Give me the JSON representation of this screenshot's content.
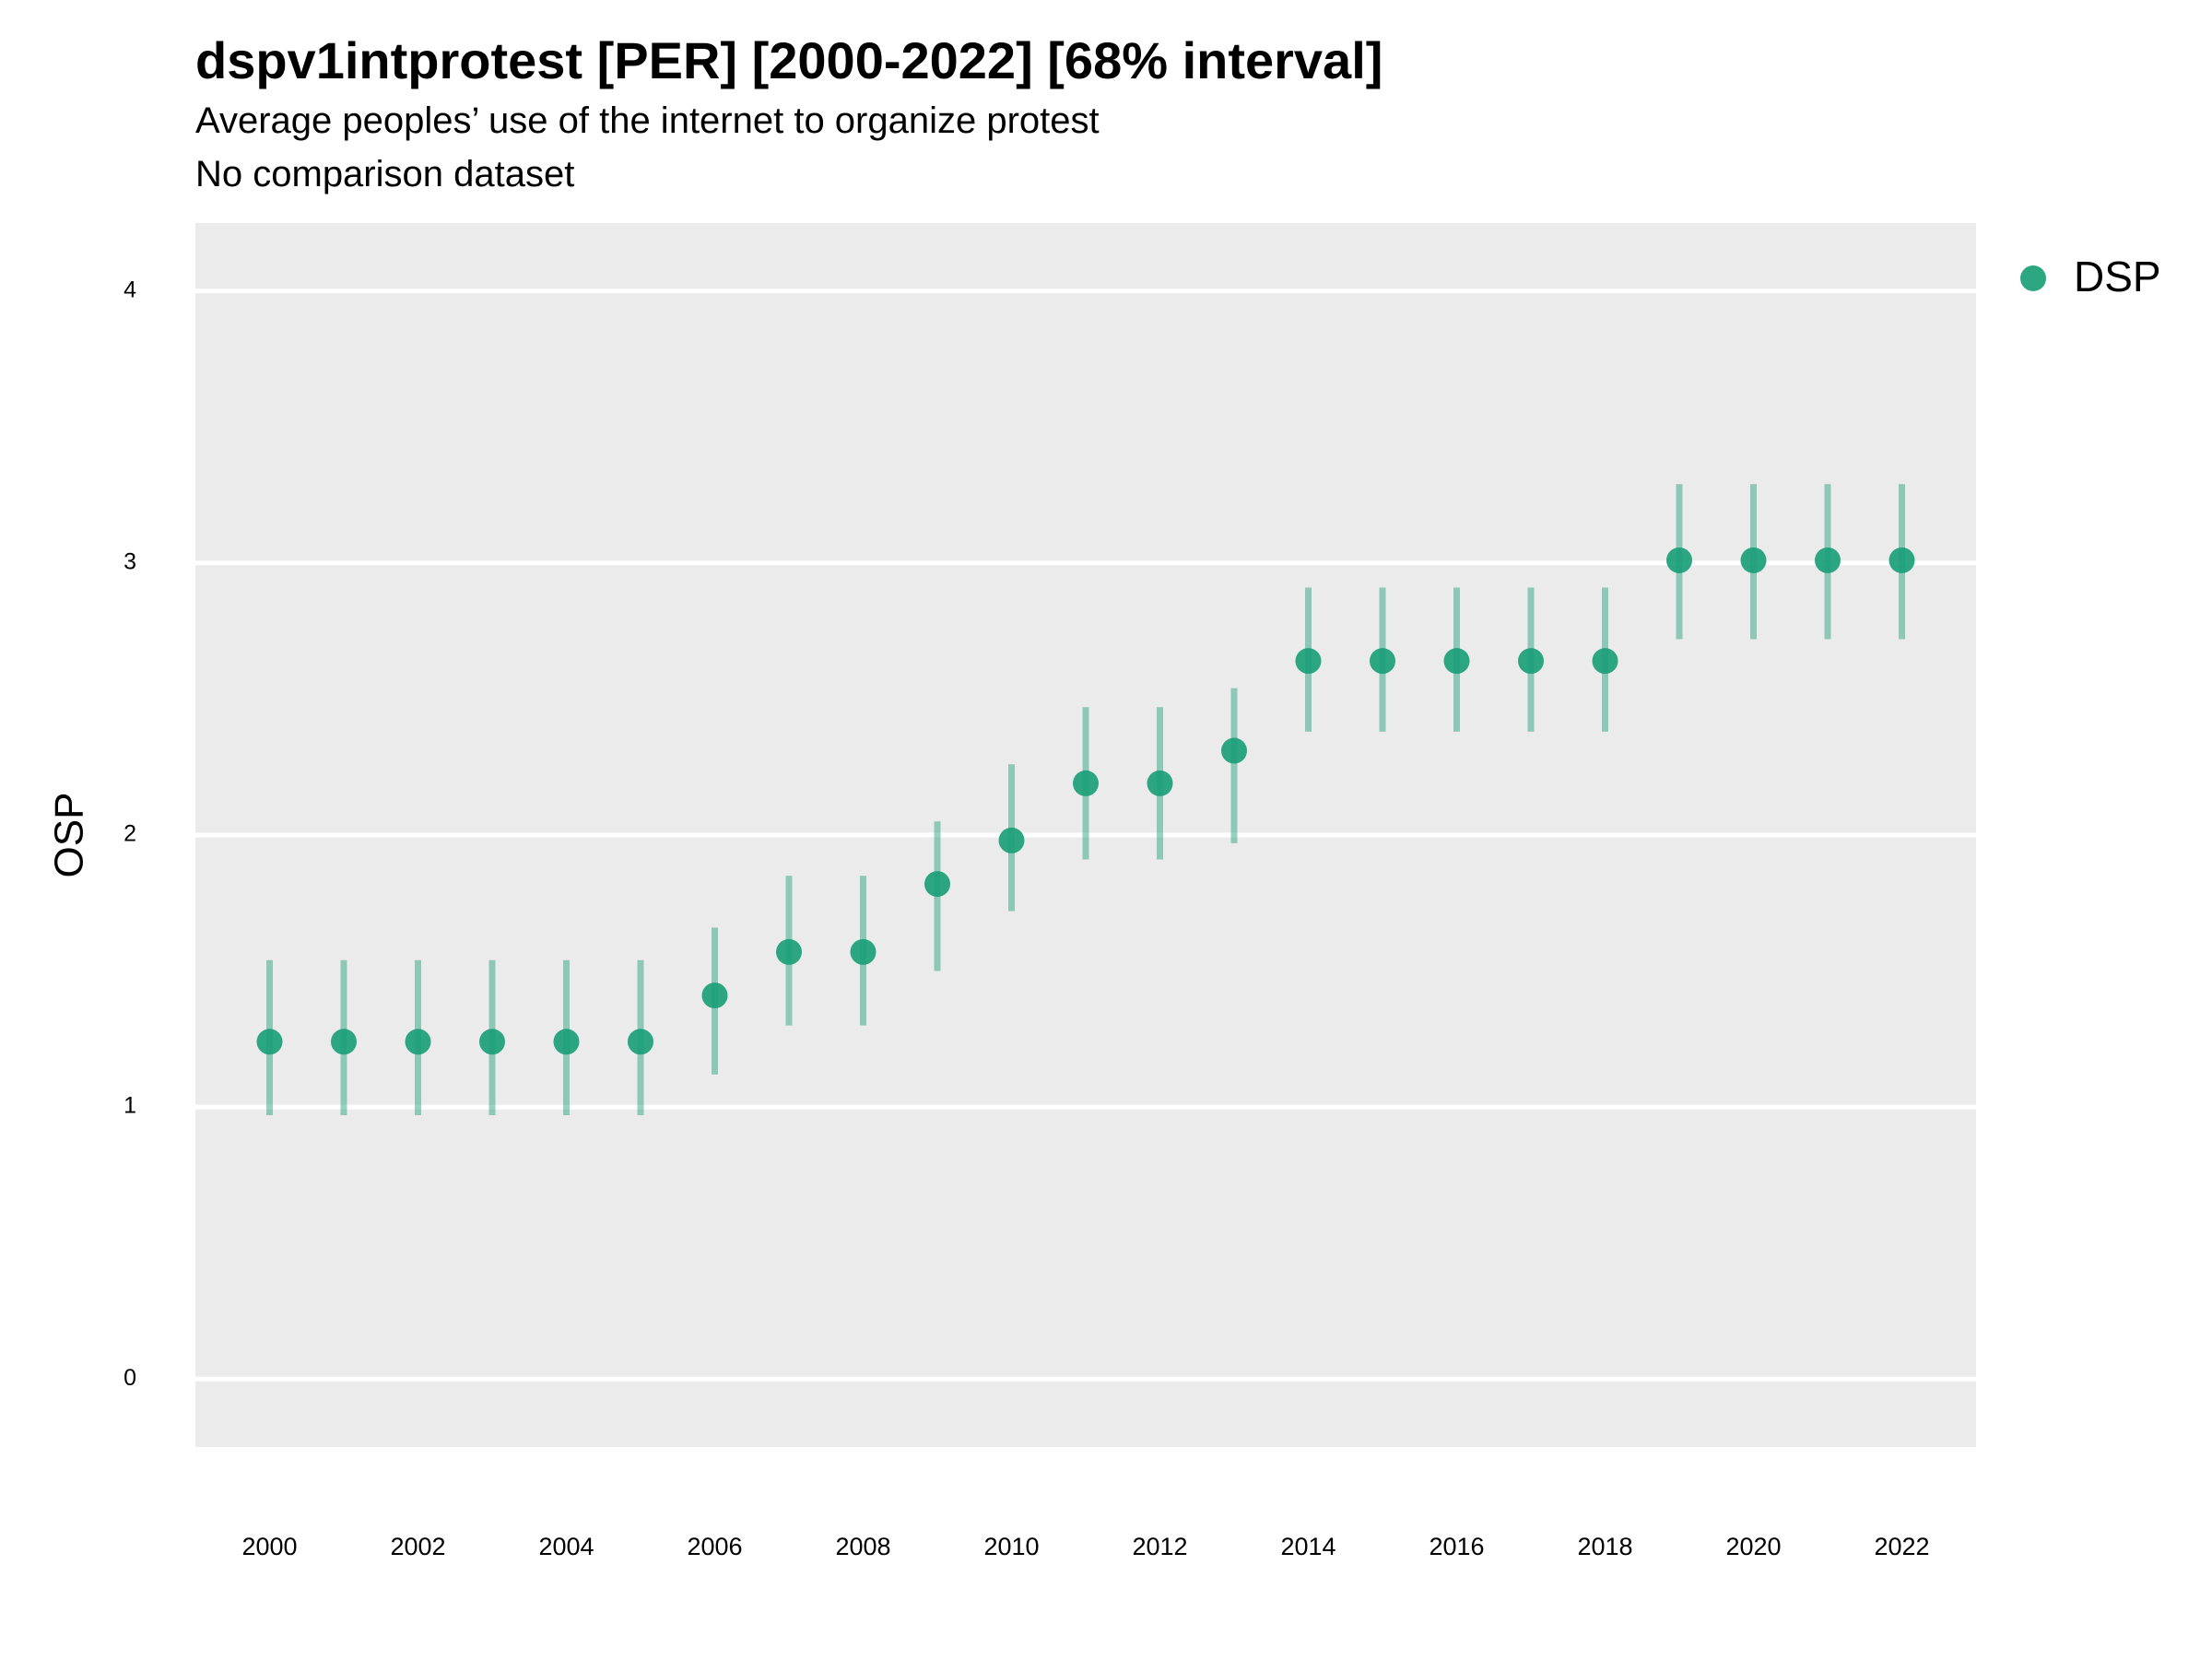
{
  "chart_data": {
    "type": "scatter",
    "title": "dspv1intprotest [PER] [2000-2022] [68% interval]",
    "subtitle": "Average peoples’ use of the internet to organize protest",
    "subtitle2": "No comparison dataset",
    "xlabel": "",
    "ylabel": "OSP",
    "xlim": [
      1999,
      2023
    ],
    "ylim": [
      -0.25,
      4.25
    ],
    "x_ticks": [
      2000,
      2002,
      2004,
      2006,
      2008,
      2010,
      2012,
      2014,
      2016,
      2018,
      2020,
      2022
    ],
    "y_ticks": [
      0,
      1,
      2,
      3,
      4
    ],
    "grid": true,
    "legend_position": "top-right",
    "series": [
      {
        "name": "DSP",
        "color": "#1b9e77",
        "x": [
          2000,
          2001,
          2002,
          2003,
          2004,
          2005,
          2006,
          2007,
          2008,
          2009,
          2010,
          2011,
          2012,
          2013,
          2014,
          2015,
          2016,
          2017,
          2018,
          2019,
          2020,
          2021,
          2022
        ],
        "y": [
          1.24,
          1.24,
          1.24,
          1.24,
          1.24,
          1.24,
          1.41,
          1.57,
          1.57,
          1.82,
          1.98,
          2.19,
          2.19,
          2.31,
          2.64,
          2.64,
          2.64,
          2.64,
          2.64,
          3.01,
          3.01,
          3.01,
          3.01
        ],
        "lower": [
          0.97,
          0.97,
          0.97,
          0.97,
          0.97,
          0.97,
          1.12,
          1.3,
          1.3,
          1.5,
          1.72,
          1.91,
          1.91,
          1.97,
          2.38,
          2.38,
          2.38,
          2.38,
          2.38,
          2.72,
          2.72,
          2.72,
          2.72
        ],
        "upper": [
          1.54,
          1.54,
          1.54,
          1.54,
          1.54,
          1.54,
          1.66,
          1.85,
          1.85,
          2.05,
          2.26,
          2.47,
          2.47,
          2.54,
          2.91,
          2.91,
          2.91,
          2.91,
          2.91,
          3.29,
          3.29,
          3.29,
          3.29
        ]
      }
    ]
  }
}
